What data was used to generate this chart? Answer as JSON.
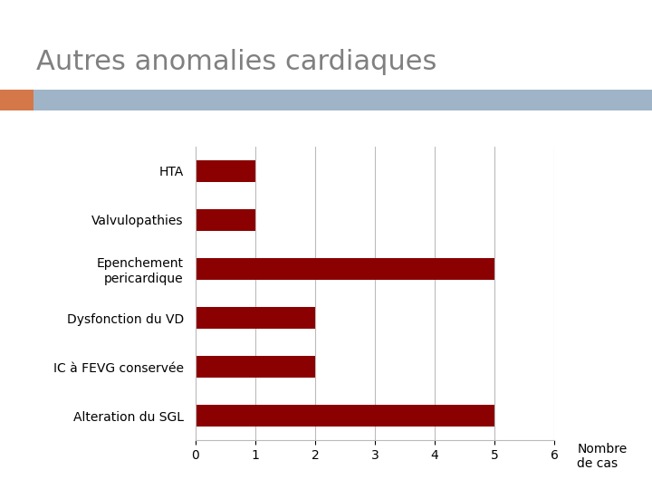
{
  "title": "Autres anomalies cardiaques",
  "categories": [
    "HTA",
    "Valvulopathies",
    "Epenchement\npericardique",
    "Dysfonction du VD",
    "IC à FEVG conservée",
    "Alteration du SGL"
  ],
  "values": [
    1,
    1,
    5,
    2,
    2,
    5
  ],
  "bar_color": "#8B0000",
  "xlabel": "Nombre\nde cas",
  "xlim": [
    0,
    6
  ],
  "xticks": [
    0,
    1,
    2,
    3,
    4,
    5,
    6
  ],
  "background_color": "#ffffff",
  "title_color": "#808080",
  "title_fontsize": 22,
  "bar_height": 0.45,
  "grid_color": "#bbbbbb",
  "header_bar_color": "#a0b4c8",
  "header_accent_color": "#d4784a",
  "tick_label_fontsize": 10,
  "xlabel_fontsize": 10,
  "ylabel_fontsize": 10
}
